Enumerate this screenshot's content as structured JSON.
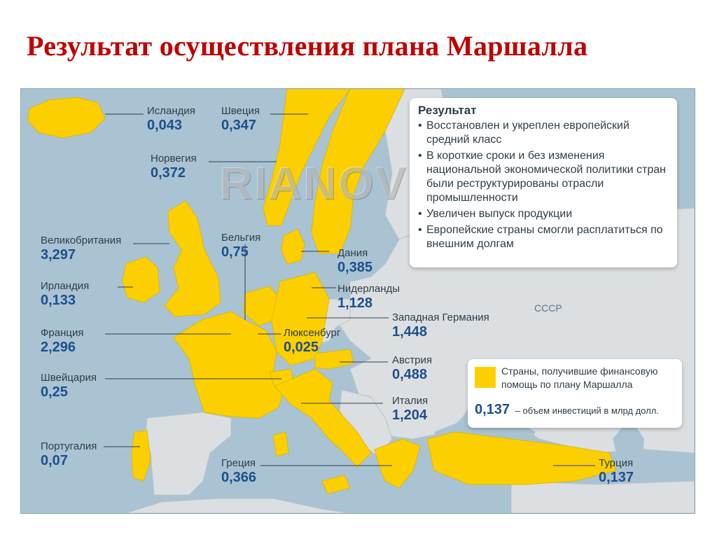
{
  "slide": {
    "title": "Результат осуществления плана Маршалла"
  },
  "map": {
    "watermark": "RIANOVOSTI",
    "ussr_label": "СССР",
    "colors": {
      "aid_country": "#fcd000",
      "sea": "#a9c3d3",
      "other_land": "#dcdfe1",
      "value": "#1d4f8c"
    },
    "countries": [
      {
        "name": "Исландия",
        "value": "0,043"
      },
      {
        "name": "Швеция",
        "value": "0,347"
      },
      {
        "name": "Норвегия",
        "value": "0,372"
      },
      {
        "name": "Великобритания",
        "value": "3,297"
      },
      {
        "name": "Бельгия",
        "value": "0,75"
      },
      {
        "name": "Дания",
        "value": "0,385"
      },
      {
        "name": "Ирландия",
        "value": "0,133"
      },
      {
        "name": "Нидерланды",
        "value": "1,128"
      },
      {
        "name": "Западная Германия",
        "value": "1,448"
      },
      {
        "name": "Франция",
        "value": "2,296"
      },
      {
        "name": "Люксенбург",
        "value": "0,025"
      },
      {
        "name": "Австрия",
        "value": "0,488"
      },
      {
        "name": "Швейцария",
        "value": "0,25"
      },
      {
        "name": "Италия",
        "value": "1,204"
      },
      {
        "name": "Португалия",
        "value": "0,07"
      },
      {
        "name": "Греция",
        "value": "0,366"
      },
      {
        "name": "Турция",
        "value": "0,137"
      }
    ]
  },
  "result_box": {
    "title": "Результат",
    "items": [
      "Восстановлен и укреплен европейский средний класс",
      "В короткие сроки и без изменения национальной экономической политики стран были реструктурированы отрасли промышленности",
      "Увеличен выпуск продукции",
      "Европейские страны смогли расплатиться по внешним долгам"
    ]
  },
  "legend": {
    "swatch_text": "Страны, получившие финансовую помощь по плану Маршалла",
    "example_value": "0,137",
    "example_text": "– объем инвестиций в млрд долл."
  }
}
